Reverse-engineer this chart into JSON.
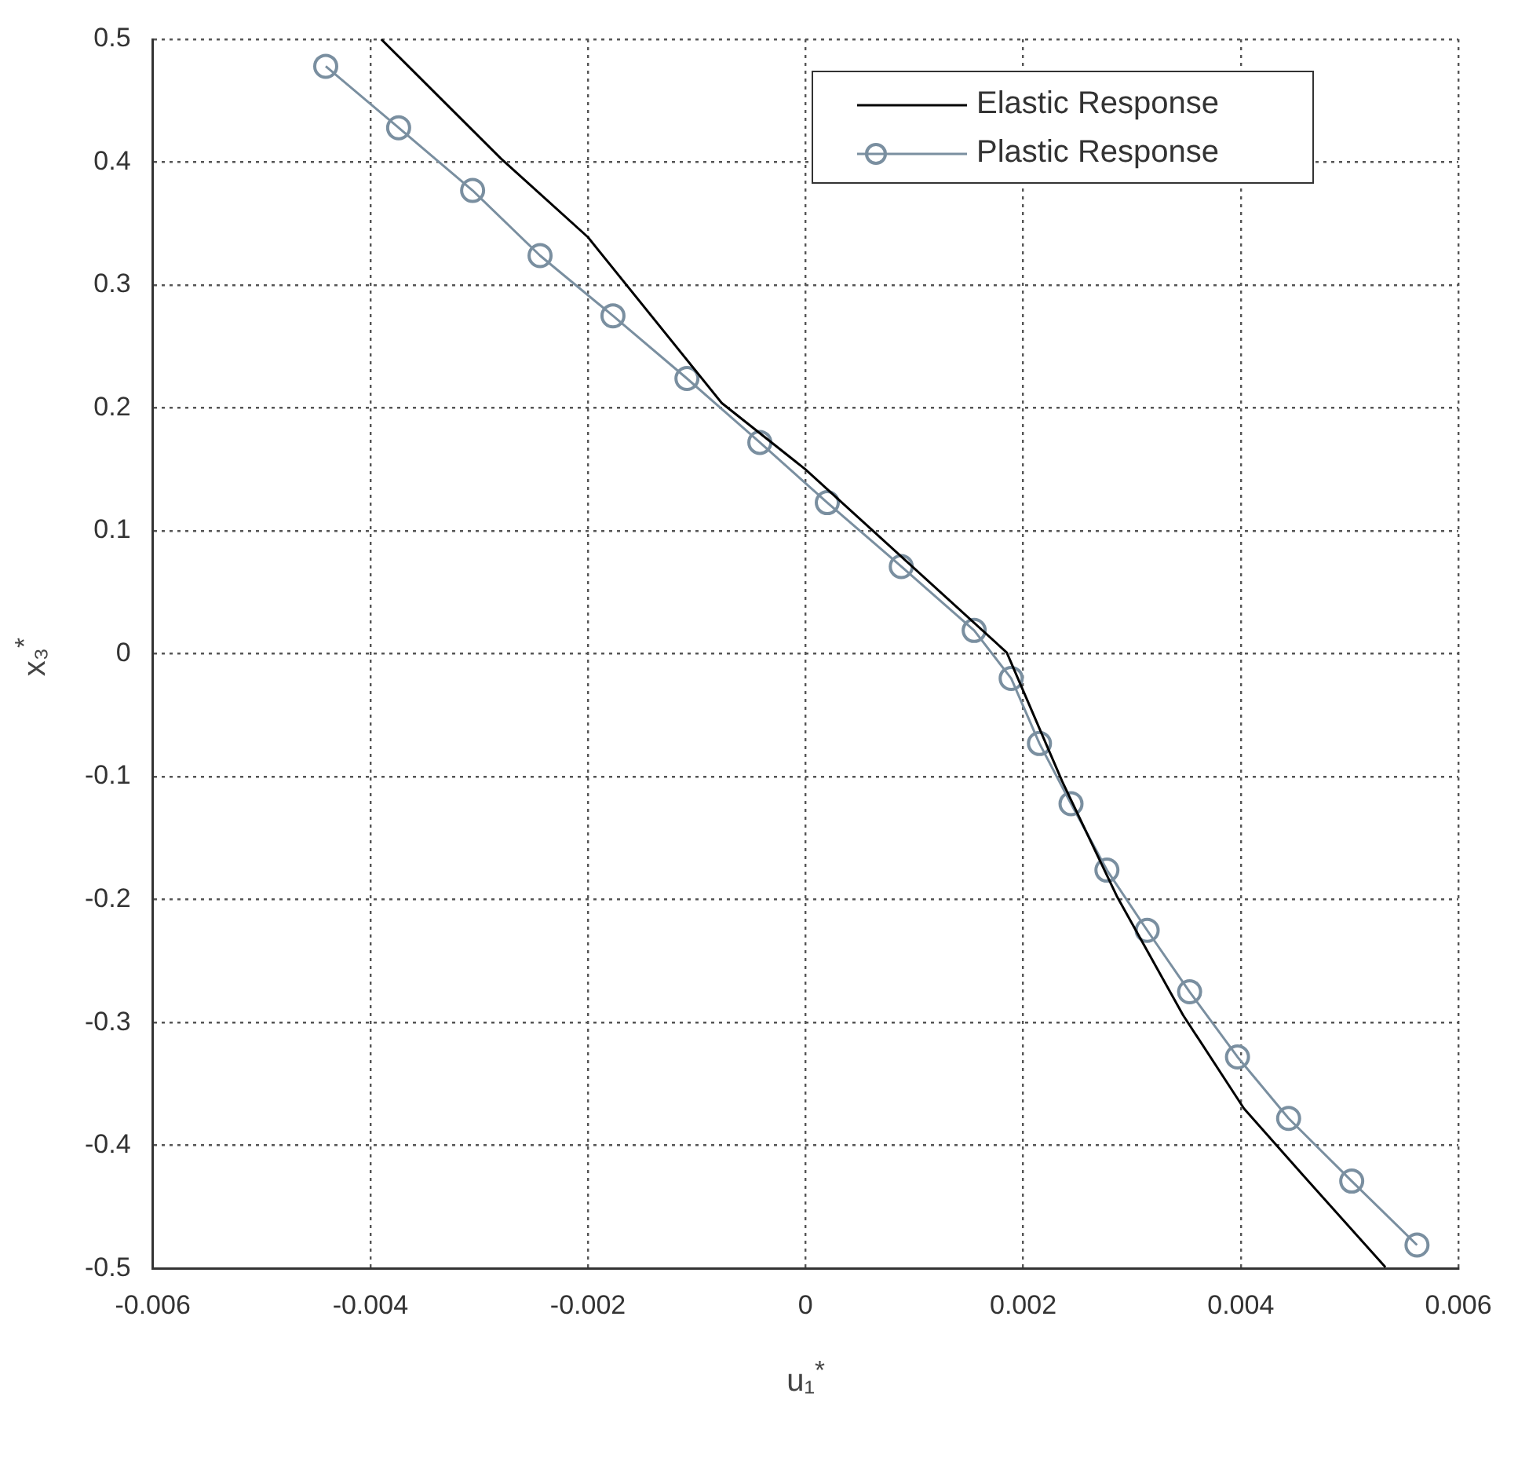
{
  "chart_data": {
    "type": "line",
    "xlabel": "u₁$^{*}$",
    "ylabel": "x₃$^{*}$",
    "xlim": [
      -0.006,
      0.006
    ],
    "xticks": [
      -0.006,
      -0.004,
      -0.002,
      0,
      0.002,
      0.004,
      0.006
    ],
    "ylim": [
      -0.5,
      0.5
    ],
    "yticks": [
      -0.5,
      -0.4,
      -0.3,
      -0.2,
      -0.1,
      0,
      0.1,
      0.2,
      0.3,
      0.4,
      0.5
    ],
    "grid": true,
    "legend": "top right",
    "line_style": "solid",
    "series": [
      {
        "name": "Elastic Response",
        "color": "#000000",
        "marker": "none",
        "x": [
          -0.0039,
          -0.0028,
          -0.002,
          -0.00077,
          0,
          0.00185,
          0.00236,
          0.00286,
          0.00347,
          0.00403,
          0.00458,
          0.00533
        ],
        "values": [
          0.5,
          0.403,
          0.339,
          0.204,
          0.15,
          0.001,
          -0.104,
          -0.197,
          -0.294,
          -0.37,
          -0.425,
          -0.499
        ]
      },
      {
        "name": "Plastic Response",
        "color": "#7a8fa0",
        "marker": "circle",
        "x": [
          -0.00441,
          -0.00374,
          -0.00306,
          -0.00244,
          -0.00177,
          -0.00109,
          -0.00042,
          0.0002,
          0.00088,
          0.00155,
          0.00189,
          0.00215,
          0.00244,
          0.00277,
          0.00314,
          0.00353,
          0.00397,
          0.00444,
          0.00502,
          0.00562
        ],
        "values": [
          0.478,
          0.428,
          0.377,
          0.324,
          0.275,
          0.224,
          0.172,
          0.123,
          0.071,
          0.019,
          -0.02,
          -0.073,
          -0.122,
          -0.176,
          -0.225,
          -0.275,
          -0.328,
          -0.378,
          -0.429,
          -0.481
        ]
      }
    ]
  }
}
